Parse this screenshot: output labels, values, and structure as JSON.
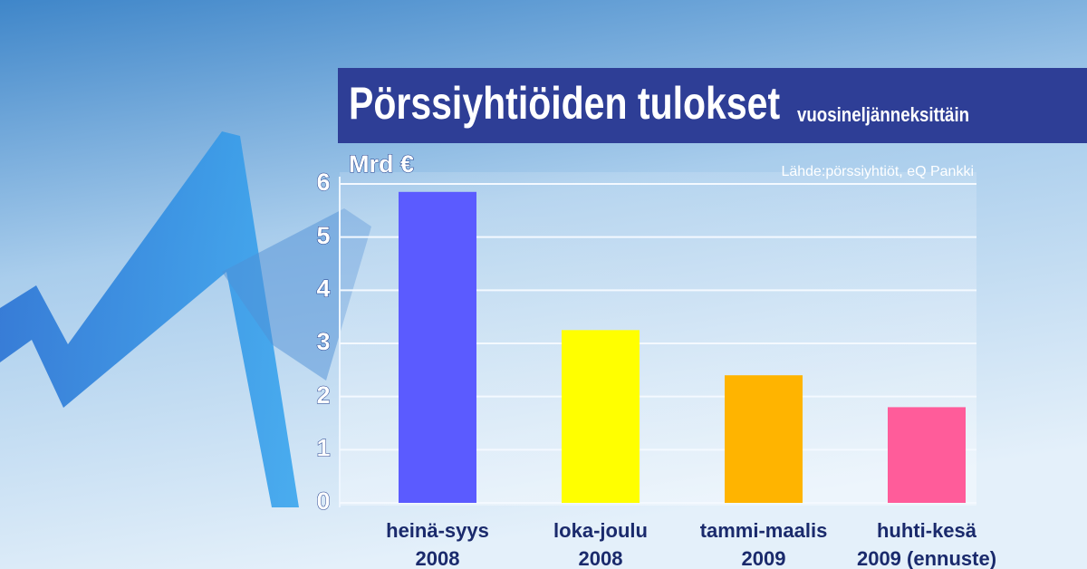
{
  "chart_data": {
    "type": "bar",
    "title": "Pörssiyhtiöiden tulokset",
    "subtitle": "vuosineljänneksittäin",
    "y_label": "Mrd €",
    "source": "Lähde:pörssiyhtiöt, eQ Pankki",
    "categories": [
      [
        "heinä-syys",
        "2008"
      ],
      [
        "loka-joulu",
        "2008"
      ],
      [
        "tammi-maalis",
        "2009"
      ],
      [
        "huhti-kesä",
        "2009 (ennuste)"
      ]
    ],
    "values": [
      5.85,
      3.25,
      2.4,
      1.8
    ],
    "colors": [
      "#5b5bff",
      "#ffff00",
      "#ffb400",
      "#ff5c9a"
    ],
    "ylim": [
      0,
      6
    ],
    "yticks": [
      0,
      1,
      2,
      3,
      4,
      5,
      6
    ],
    "grid": true
  }
}
